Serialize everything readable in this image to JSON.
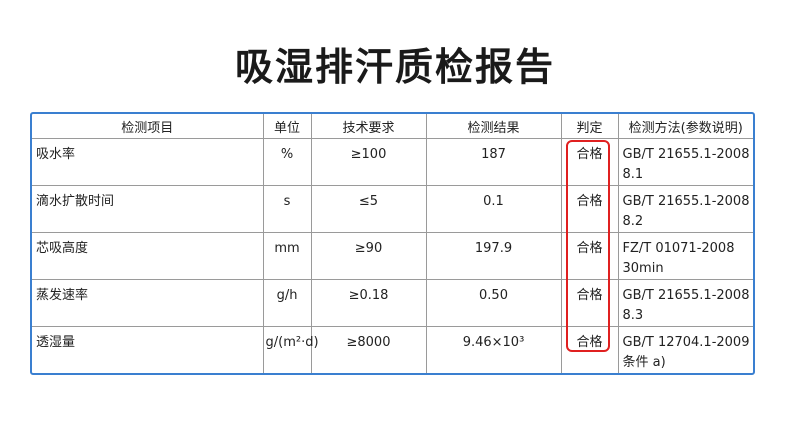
{
  "header": {
    "title": "吸湿排汗质检报告"
  },
  "table": {
    "columns": [
      "检测项目",
      "单位",
      "技术要求",
      "检测结果",
      "判定",
      "检测方法(参数说明)"
    ],
    "rows": [
      [
        "吸水率",
        "%",
        "≥100",
        "187",
        "合格",
        [
          "GB/T 21655.1-2008",
          "8.1"
        ]
      ],
      [
        "滴水扩散时间",
        "s",
        "≤5",
        "0.1",
        "合格",
        [
          "GB/T 21655.1-2008",
          "8.2"
        ]
      ],
      [
        "芯吸高度",
        "mm",
        "≥90",
        "197.9",
        "合格",
        [
          "FZ/T 01071-2008",
          "30min"
        ]
      ],
      [
        "蒸发速率",
        "g/h",
        "≥0.18",
        "0.50",
        "合格",
        [
          "GB/T 21655.1-2008",
          "8.3"
        ]
      ],
      [
        "透湿量",
        "g/(m²·d)",
        "≥8000",
        "9.46×10³",
        "合格",
        [
          "GB/T 12704.1-2009",
          "条件 a)"
        ]
      ]
    ]
  }
}
